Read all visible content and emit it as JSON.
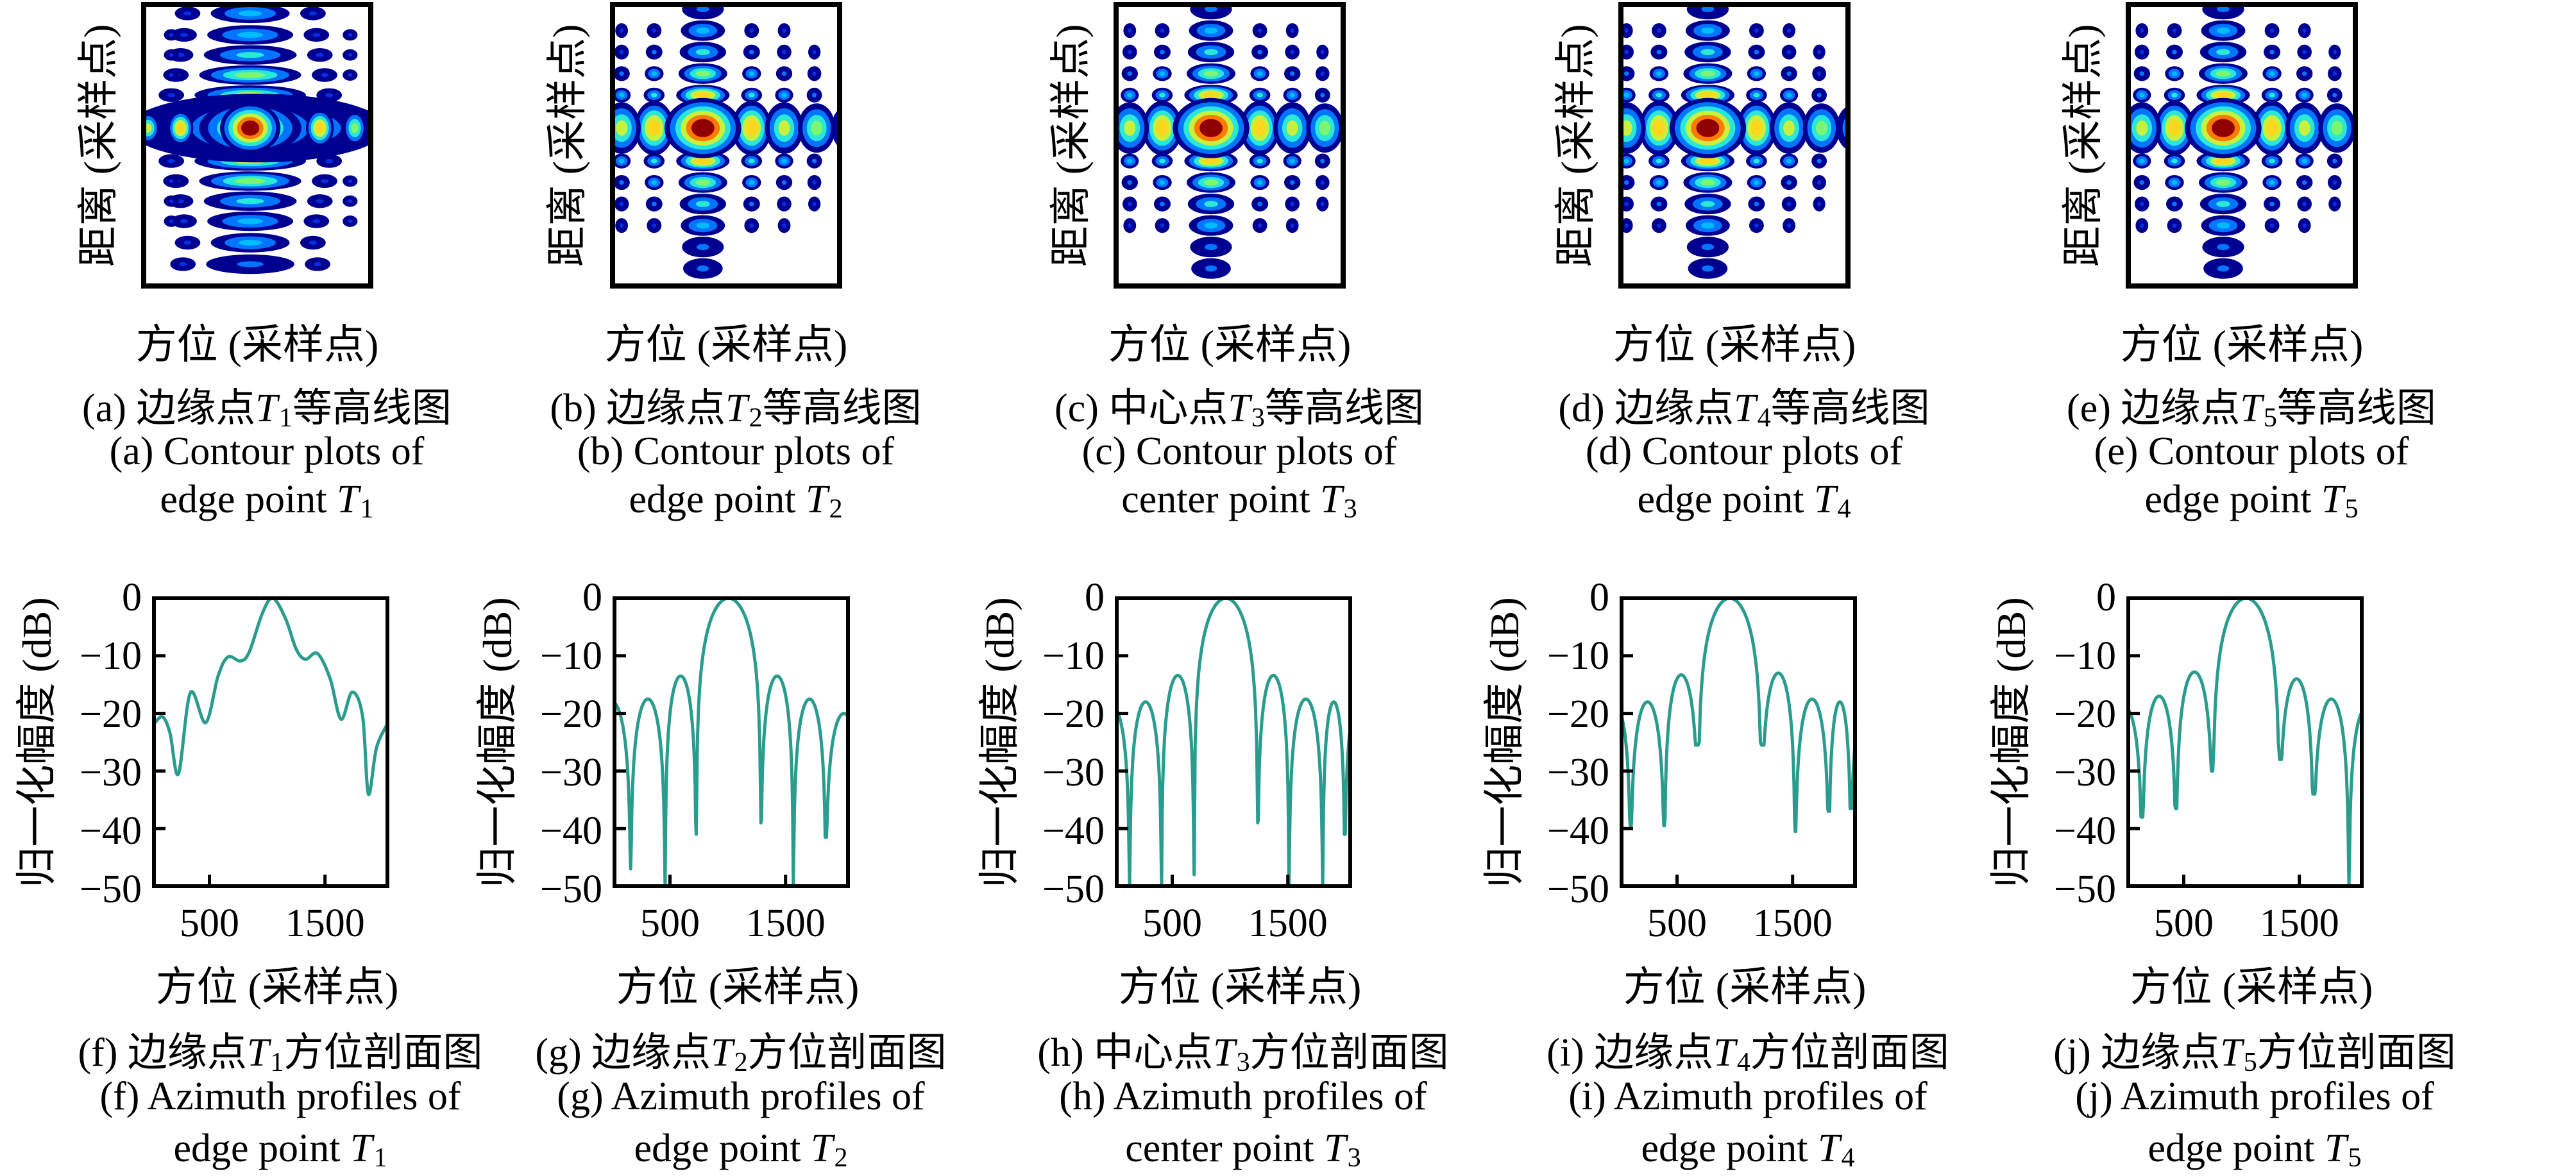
{
  "figure": {
    "point_symbol": "T",
    "top_xlabel": "方位 (采样点)",
    "top_ylabel": "距离 (采样点)",
    "bottom_xlabel": "方位 (采样点)",
    "bottom_ylabel": "归一化幅度 (dB)",
    "x_ticks": [
      "500",
      "1500"
    ],
    "y_ticks": [
      "0",
      "−10",
      "−20",
      "−30",
      "−40",
      "−50"
    ],
    "line_color": "#2a9c8e",
    "axis_color": "#000000",
    "colormap": "jet"
  },
  "columns": [
    {
      "sub": "1",
      "top": {
        "zh_pre": "(a) 边缘点",
        "zh_post": "等高线图",
        "en1": "(a) Contour plots of",
        "en2_pre": "edge point"
      },
      "bottom": {
        "zh_pre": "(f) 边缘点",
        "zh_post": "方位剖面图",
        "en1": "(f) Azimuth profiles of",
        "en2_pre": "edge point"
      }
    },
    {
      "sub": "2",
      "top": {
        "zh_pre": "(b) 边缘点",
        "zh_post": "等高线图",
        "en1": "(b) Contour plots of",
        "en2_pre": "edge point"
      },
      "bottom": {
        "zh_pre": "(g) 边缘点",
        "zh_post": "方位剖面图",
        "en1": "(g) Azimuth profiles of",
        "en2_pre": "edge point"
      }
    },
    {
      "sub": "3",
      "top": {
        "zh_pre": "(c) 中心点",
        "zh_post": "等高线图",
        "en1": "(c) Contour plots of",
        "en2_pre": "center point"
      },
      "bottom": {
        "zh_pre": "(h) 中心点",
        "zh_post": "方位剖面图",
        "en1": "(h) Azimuth profiles of",
        "en2_pre": "center point"
      }
    },
    {
      "sub": "4",
      "top": {
        "zh_pre": "(d) 边缘点",
        "zh_post": "等高线图",
        "en1": "(d) Contour plots of",
        "en2_pre": "edge point"
      },
      "bottom": {
        "zh_pre": "(i) 边缘点",
        "zh_post": "方位剖面图",
        "en1": "(i) Azimuth profiles of",
        "en2_pre": "edge point"
      }
    },
    {
      "sub": "5",
      "top": {
        "zh_pre": "(e) 边缘点",
        "zh_post": "等高线图",
        "en1": "(e) Contour plots of",
        "en2_pre": "edge point"
      },
      "bottom": {
        "zh_pre": "(j) 边缘点",
        "zh_post": "方位剖面图",
        "en1": "(j) Azimuth profiles of",
        "en2_pre": "edge point"
      }
    }
  ],
  "chart_data": [
    {
      "id": "a",
      "type": "contour",
      "style": "smeared",
      "title": "Contour plot of edge point T1",
      "xlabel": "方位 (采样点)",
      "ylabel": "距离 (采样点)",
      "colormap": "jet",
      "peak_x_frac": 0.47,
      "peak_y_frac": 0.44
    },
    {
      "id": "b",
      "type": "contour",
      "style": "cross",
      "title": "Contour plot of edge point T2",
      "xlabel": "方位 (采样点)",
      "ylabel": "距离 (采样点)",
      "colormap": "jet",
      "peak_x_frac": 0.4,
      "peak_y_frac": 0.44
    },
    {
      "id": "c",
      "type": "contour",
      "style": "cross",
      "title": "Contour plot of center point T3",
      "xlabel": "方位 (采样点)",
      "ylabel": "距离 (采样点)",
      "colormap": "jet",
      "peak_x_frac": 0.42,
      "peak_y_frac": 0.44
    },
    {
      "id": "d",
      "type": "contour",
      "style": "cross",
      "title": "Contour plot of edge point T4",
      "xlabel": "方位 (采样点)",
      "ylabel": "距离 (采样点)",
      "colormap": "jet",
      "peak_x_frac": 0.385,
      "peak_y_frac": 0.44
    },
    {
      "id": "e",
      "type": "contour",
      "style": "cross",
      "title": "Contour plot of edge point T5",
      "xlabel": "方位 (采样点)",
      "ylabel": "距离 (采样点)",
      "colormap": "jet",
      "peak_x_frac": 0.42,
      "peak_y_frac": 0.44
    },
    {
      "id": "f",
      "type": "line",
      "model": "points",
      "title": "Azimuth profile of edge point T1",
      "xlabel": "方位 (采样点)",
      "ylabel": "归一化幅度 (dB)",
      "xlim": [
        20,
        2040
      ],
      "ylim": [
        -50,
        0
      ],
      "x_ticks": [
        500,
        1500
      ],
      "y_ticks": [
        0,
        -10,
        -20,
        -30,
        -40,
        -50
      ],
      "points": [
        [
          20,
          -21.8
        ],
        [
          95,
          -20.6
        ],
        [
          160,
          -23.5
        ],
        [
          232,
          -30.5
        ],
        [
          335,
          -16.4
        ],
        [
          468,
          -21.6
        ],
        [
          575,
          -13.5
        ],
        [
          660,
          -10.2
        ],
        [
          770,
          -10.9
        ],
        [
          845,
          -9.3
        ],
        [
          960,
          -2.5
        ],
        [
          1050,
          0
        ],
        [
          1160,
          -3.6
        ],
        [
          1250,
          -8.8
        ],
        [
          1330,
          -10.6
        ],
        [
          1435,
          -9.6
        ],
        [
          1545,
          -14
        ],
        [
          1638,
          -21
        ],
        [
          1735,
          -16.3
        ],
        [
          1825,
          -20.5
        ],
        [
          1875,
          -34
        ],
        [
          1945,
          -26
        ],
        [
          2040,
          -21.8
        ]
      ]
    },
    {
      "id": "g",
      "type": "line",
      "model": "lobes",
      "title": "Azimuth profile of edge point T2",
      "xlabel": "方位 (采样点)",
      "ylabel": "归一化幅度 (dB)",
      "xlim": [
        20,
        2040
      ],
      "ylim": [
        -50,
        0
      ],
      "x_ticks": [
        500,
        1500
      ],
      "y_ticks": [
        0,
        -10,
        -20,
        -30,
        -40,
        -50
      ],
      "main_peak_x": 1007,
      "lobes": [
        [
          -160,
          160,
          -18,
          -50,
          -47
        ],
        [
          160,
          458,
          -17.5,
          -47,
          -50
        ],
        [
          458,
          727,
          -13.5,
          -50,
          -41
        ],
        [
          727,
          1287,
          0,
          -41,
          -39
        ],
        [
          1287,
          1567,
          -13.5,
          -39,
          -50
        ],
        [
          1567,
          1848,
          -17.5,
          -50,
          -41.5
        ],
        [
          1848,
          2160,
          -20,
          -41.5,
          -50
        ]
      ]
    },
    {
      "id": "h",
      "type": "line",
      "model": "lobes",
      "title": "Azimuth profile of center point T3",
      "xlabel": "方位 (采样点)",
      "ylabel": "归一化幅度 (dB)",
      "xlim": [
        20,
        2040
      ],
      "ylim": [
        -50,
        0
      ],
      "x_ticks": [
        500,
        1500
      ],
      "y_ticks": [
        0,
        -10,
        -20,
        -30,
        -40,
        -50
      ],
      "main_peak_x": 964,
      "lobes": [
        [
          -150,
          131,
          -19,
          -50,
          -50
        ],
        [
          131,
          408,
          -18,
          -50,
          -50
        ],
        [
          408,
          689,
          -13.4,
          -50,
          -48
        ],
        [
          689,
          1240,
          0,
          -48,
          -39
        ],
        [
          1240,
          1510,
          -13.4,
          -39,
          -50
        ],
        [
          1510,
          1802,
          -17.5,
          -50,
          -50
        ],
        [
          1802,
          1993,
          -18,
          -50,
          -41
        ],
        [
          1993,
          2200,
          -19,
          -41,
          -50
        ]
      ]
    },
    {
      "id": "i",
      "type": "line",
      "model": "lobes",
      "title": "Azimuth profile of edge point T4",
      "xlabel": "方位 (采样点)",
      "ylabel": "归一化幅度 (dB)",
      "xlim": [
        20,
        2040
      ],
      "ylim": [
        -50,
        0
      ],
      "x_ticks": [
        500,
        1500
      ],
      "y_ticks": [
        0,
        -10,
        -20,
        -30,
        -40,
        -50
      ],
      "main_peak_x": 956,
      "lobes": [
        [
          -150,
          99,
          -19,
          -50,
          -39.5
        ],
        [
          99,
          391,
          -18,
          -39.5,
          -39.5
        ],
        [
          391,
          682,
          -13.3,
          -39.5,
          -25.5
        ],
        [
          682,
          1231,
          0,
          -25.5,
          -25.5
        ],
        [
          1231,
          1522,
          -13,
          -25.5,
          -40.5
        ],
        [
          1522,
          1814,
          -17.5,
          -40.5,
          -37
        ],
        [
          1814,
          2004,
          -18,
          -37,
          -36.5
        ],
        [
          2004,
          2230,
          -19,
          -36.5,
          -50
        ]
      ]
    },
    {
      "id": "j",
      "type": "line",
      "model": "lobes",
      "title": "Azimuth profile of edge point T5",
      "xlabel": "方位 (采样点)",
      "ylabel": "归一化幅度 (dB)",
      "xlim": [
        20,
        2040
      ],
      "ylim": [
        -50,
        0
      ],
      "x_ticks": [
        500,
        1500
      ],
      "y_ticks": [
        0,
        -10,
        -20,
        -30,
        -40,
        -50
      ],
      "main_peak_x": 1040,
      "lobes": [
        [
          -150,
          140,
          -19,
          -50,
          -38
        ],
        [
          140,
          434,
          -17,
          -38,
          -36.5
        ],
        [
          434,
          751,
          -12.8,
          -36.5,
          -30
        ],
        [
          751,
          1329,
          0,
          -30,
          -28
        ],
        [
          1329,
          1623,
          -14,
          -28,
          -34
        ],
        [
          1623,
          1929,
          -17.5,
          -34,
          -50
        ],
        [
          1929,
          2230,
          -19,
          -50,
          -50
        ]
      ]
    }
  ]
}
